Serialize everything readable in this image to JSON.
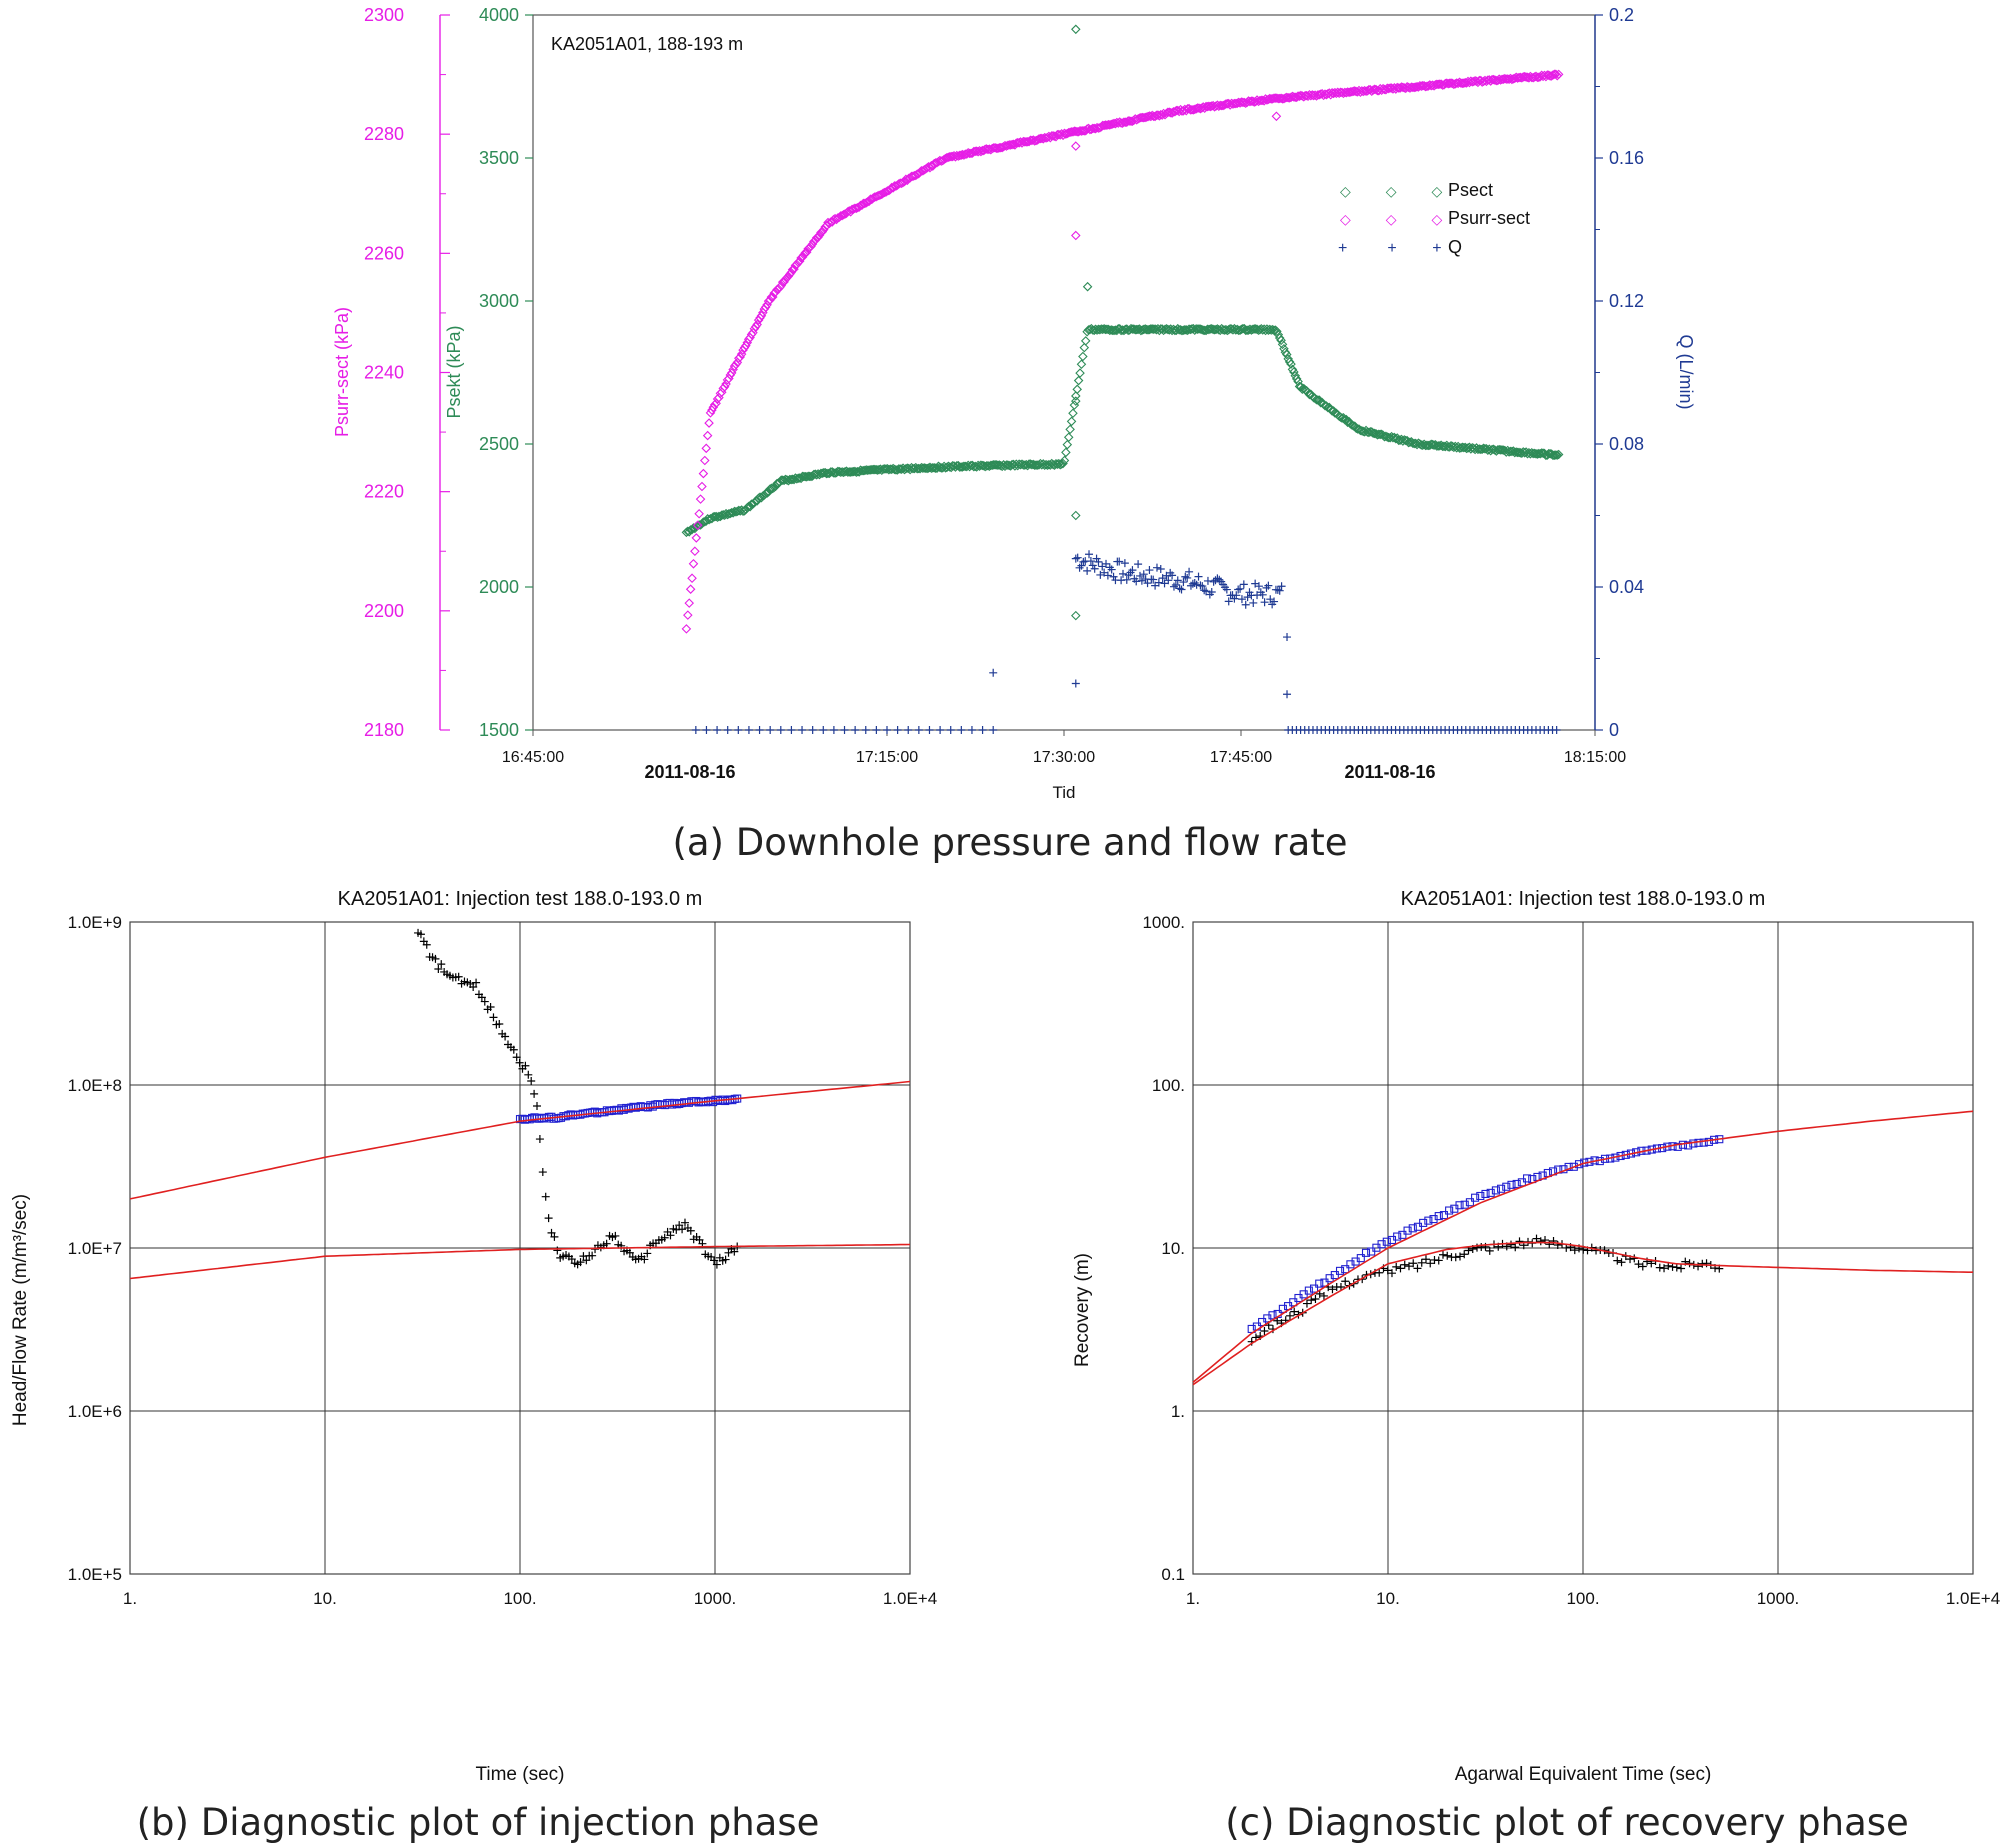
{
  "chart_data": [
    {
      "id": "a",
      "type": "scatter",
      "caption": "(a) Downhole pressure and flow rate",
      "annotation": "KA2051A01, 188-193 m",
      "xlabel": "Tid",
      "x_ticks": [
        "16:45:00",
        "17:15:00",
        "17:30:00",
        "17:45:00",
        "18:15:00"
      ],
      "date_labels": [
        "2011-08-16",
        "2011-08-16"
      ],
      "y_left_outer": {
        "label": "Psurr-sect (kPa)",
        "color": "#e61ee6",
        "range": [
          2180,
          2300
        ],
        "ticks": [
          "2180",
          "2200",
          "2220",
          "2240",
          "2260",
          "2280",
          "2300"
        ]
      },
      "y_left_inner": {
        "label": "Psekt (kPa)",
        "color": "#2e8b57",
        "range": [
          1500,
          4000
        ],
        "ticks": [
          "1500",
          "2000",
          "2500",
          "3000",
          "3500",
          "4000"
        ]
      },
      "y_right": {
        "label": "Q (L/min)",
        "color": "#1f3a93",
        "range": [
          0,
          0.2
        ],
        "ticks": [
          "0",
          "0.04",
          "0.08",
          "0.12",
          "0.16",
          "0.2"
        ]
      },
      "legend": [
        "Psect",
        "Psurr-sect",
        "Q"
      ],
      "series": [
        {
          "name": "Psect",
          "axis": "Psekt",
          "color": "#2e8b57",
          "x": [
            "16:58",
            "17:00",
            "17:03",
            "17:06",
            "17:10",
            "17:20",
            "17:30",
            "17:32",
            "17:40",
            "17:48",
            "17:50",
            "17:55",
            "18:00",
            "18:12"
          ],
          "values": [
            2190,
            2240,
            2270,
            2370,
            2400,
            2420,
            2430,
            2900,
            2900,
            2900,
            2700,
            2550,
            2500,
            2460
          ]
        },
        {
          "name": "Psurr-sect",
          "axis": "Psurr-sect",
          "color": "#e61ee6",
          "x": [
            "16:58",
            "17:00",
            "17:05",
            "17:10",
            "17:20",
            "17:30",
            "17:40",
            "17:48",
            "18:00",
            "18:12"
          ],
          "values": [
            2197,
            2233,
            2252,
            2265,
            2276,
            2280,
            2284,
            2286,
            2288,
            2290
          ]
        },
        {
          "name": "Q",
          "axis": "Q",
          "color": "#1f3a93",
          "x": [
            "16:58",
            "17:24",
            "17:31",
            "17:35",
            "17:40",
            "17:45",
            "17:48",
            "17:49",
            "18:12"
          ],
          "values": [
            0,
            0,
            0.048,
            0.044,
            0.042,
            0.038,
            0.038,
            0,
            0
          ]
        }
      ]
    },
    {
      "id": "b",
      "type": "scatter",
      "scale": "log-log",
      "caption": "(b) Diagnostic plot of injection phase",
      "title": "KA2051A01: Injection test 188.0-193.0 m",
      "xlabel": "Time (sec)",
      "ylabel": "Head/Flow Rate (m/m³/sec)",
      "xlim": [
        1,
        10000
      ],
      "ylim": [
        100000,
        1000000000
      ],
      "x_ticks": [
        "1.",
        "10.",
        "100.",
        "1000.",
        "1.0E+4"
      ],
      "y_ticks": [
        "1.0E+5",
        "1.0E+6",
        "1.0E+7",
        "1.0E+8",
        "1.0E+9"
      ],
      "series": [
        {
          "name": "head-flow-data",
          "marker": "square",
          "color": "#2020d0",
          "x": [
            100,
            150,
            200,
            300,
            500,
            700,
            1000,
            1300
          ],
          "values": [
            62000000,
            63000000,
            66000000,
            70000000,
            75000000,
            78000000,
            80000000,
            82000000
          ]
        },
        {
          "name": "derivative-data",
          "marker": "plus",
          "color": "#000000",
          "x": [
            30,
            35,
            45,
            60,
            80,
            100,
            115,
            125,
            130,
            140,
            160,
            200,
            300,
            400,
            500,
            700,
            1000,
            1300
          ],
          "values": [
            900000000,
            600000000,
            450000000,
            400000000,
            220000000,
            140000000,
            110000000,
            60000000,
            30000000,
            15000000,
            9000000,
            8000000,
            12000000,
            8000000,
            11000000,
            14000000,
            8000000,
            10000000
          ]
        },
        {
          "name": "fit-upper",
          "marker": "line",
          "color": "#e02020",
          "x": [
            1,
            10,
            100,
            1000,
            10000
          ],
          "values": [
            20000000,
            36000000,
            60000000,
            80000000,
            105000000
          ]
        },
        {
          "name": "fit-lower",
          "marker": "line",
          "color": "#e02020",
          "x": [
            1,
            10,
            100,
            1000,
            10000
          ],
          "values": [
            6500000,
            8900000,
            9800000,
            10200000,
            10500000
          ]
        }
      ]
    },
    {
      "id": "c",
      "type": "scatter",
      "scale": "log-log",
      "caption": "(c) Diagnostic plot of recovery phase",
      "title": "KA2051A01: Injection test 188.0-193.0 m",
      "xlabel": "Agarwal Equivalent Time (sec)",
      "ylabel": "Recovery (m)",
      "xlim": [
        1,
        10000
      ],
      "ylim": [
        0.1,
        1000
      ],
      "x_ticks": [
        "1.",
        "10.",
        "100.",
        "1000.",
        "1.0E+4"
      ],
      "y_ticks": [
        "0.1",
        "1.",
        "10.",
        "100.",
        "1000."
      ],
      "series": [
        {
          "name": "recovery-data",
          "marker": "square",
          "color": "#2020d0",
          "x": [
            2,
            3,
            4,
            5,
            6,
            7,
            8,
            10,
            15,
            20,
            30,
            50,
            100,
            200,
            300,
            500
          ],
          "values": [
            3.2,
            4.3,
            5.5,
            6.5,
            7.5,
            8.5,
            9.5,
            11,
            14,
            16.5,
            21,
            26,
            33,
            39,
            42,
            46
          ]
        },
        {
          "name": "derivative-data",
          "marker": "plus",
          "color": "#000000",
          "x": [
            2,
            3,
            4,
            5,
            7,
            10,
            15,
            20,
            30,
            50,
            70,
            100,
            150,
            200,
            300,
            400,
            500
          ],
          "values": [
            2.8,
            3.7,
            4.5,
            5.5,
            6.5,
            7.2,
            8,
            9,
            10,
            10.8,
            10.8,
            10,
            8.8,
            8,
            7.7,
            8.1,
            7.8
          ]
        },
        {
          "name": "fit-upper",
          "marker": "line",
          "color": "#e02020",
          "x": [
            1,
            2,
            5,
            10,
            30,
            100,
            300,
            1000,
            3000,
            10000
          ],
          "values": [
            1.5,
            3,
            6,
            10,
            19,
            33,
            43,
            52,
            60,
            69
          ]
        },
        {
          "name": "fit-lower",
          "marker": "line",
          "color": "#e02020",
          "x": [
            1,
            2,
            5,
            10,
            20,
            30,
            50,
            70,
            100,
            200,
            300,
            500,
            1000,
            3000,
            10000
          ],
          "values": [
            1.45,
            2.6,
            5,
            8,
            9.8,
            10.4,
            10.8,
            10.8,
            10.2,
            8.6,
            8,
            7.8,
            7.6,
            7.3,
            7.1
          ]
        }
      ]
    }
  ]
}
